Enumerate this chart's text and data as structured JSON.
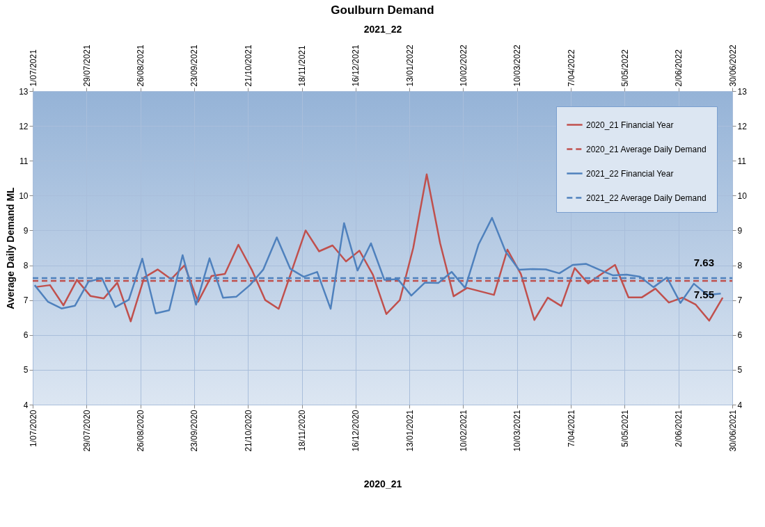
{
  "chart_data": {
    "type": "line",
    "title": "Goulburn Demand",
    "xlabel": "2020_21",
    "x2label": "2021_22",
    "ylabel": "Average Daily Demand ML",
    "x": [
      "2020-07-03",
      "2020-07-10",
      "2020-07-17",
      "2020-07-24",
      "2020-07-31",
      "2020-08-07",
      "2020-08-14",
      "2020-08-21",
      "2020-08-28",
      "2020-09-04",
      "2020-09-11",
      "2020-09-18",
      "2020-09-25",
      "2020-10-02",
      "2020-10-09",
      "2020-10-16",
      "2020-10-23",
      "2020-10-30",
      "2020-11-06",
      "2020-11-13",
      "2020-11-20",
      "2020-11-27",
      "2020-12-04",
      "2020-12-11",
      "2020-12-18",
      "2020-12-25",
      "2021-01-01",
      "2021-01-08",
      "2021-01-15",
      "2021-01-22",
      "2021-01-29",
      "2021-02-05",
      "2021-02-12",
      "2021-02-19",
      "2021-02-26",
      "2021-03-05",
      "2021-03-12",
      "2021-03-19",
      "2021-03-26",
      "2021-04-02",
      "2021-04-09",
      "2021-04-16",
      "2021-04-23",
      "2021-04-30",
      "2021-05-07",
      "2021-05-14",
      "2021-05-21",
      "2021-05-28",
      "2021-06-04",
      "2021-06-11",
      "2021-06-18",
      "2021-06-25"
    ],
    "series": [
      {
        "name": "2020_21 Financial Year",
        "color": "#c0504d",
        "values": [
          7.38,
          7.43,
          6.85,
          7.58,
          7.12,
          7.05,
          7.5,
          6.39,
          7.65,
          7.88,
          7.6,
          8.0,
          6.95,
          7.69,
          7.75,
          8.59,
          7.87,
          7.0,
          6.75,
          7.88,
          9.0,
          8.4,
          8.57,
          8.11,
          8.42,
          7.73,
          6.6,
          7.0,
          8.5,
          10.61,
          8.63,
          7.11,
          7.35,
          7.25,
          7.15,
          8.45,
          7.75,
          6.43,
          7.07,
          6.83,
          7.92,
          7.48,
          7.75,
          8.01,
          7.08,
          7.08,
          7.33,
          6.93,
          7.07,
          6.87,
          6.41,
          7.07
        ]
      },
      {
        "name": "2020_21 Average Daily Demand",
        "color": "#c0504d",
        "line_style": "dashed",
        "x": [
          "2020-07-01",
          "2021-06-30"
        ],
        "values": [
          7.55,
          7.55
        ]
      },
      {
        "name": "2021_22 Financial Year",
        "color": "#4f81bd",
        "axis": "x2",
        "x": [
          "2021-07-02",
          "2021-07-09",
          "2021-07-16",
          "2021-07-23",
          "2021-07-30",
          "2021-08-06",
          "2021-08-13",
          "2021-08-20",
          "2021-08-27",
          "2021-09-03",
          "2021-09-10",
          "2021-09-17",
          "2021-09-24",
          "2021-10-01",
          "2021-10-08",
          "2021-10-15",
          "2021-10-22",
          "2021-10-29",
          "2021-11-05",
          "2021-11-12",
          "2021-11-19",
          "2021-11-26",
          "2021-12-03",
          "2021-12-10",
          "2021-12-17",
          "2021-12-24",
          "2021-12-31",
          "2022-01-07",
          "2022-01-14",
          "2022-01-21",
          "2022-01-28",
          "2022-02-04",
          "2022-02-11",
          "2022-02-18",
          "2022-02-25",
          "2022-03-04",
          "2022-03-11",
          "2022-03-18",
          "2022-03-25",
          "2022-04-01",
          "2022-04-08",
          "2022-04-15",
          "2022-04-22",
          "2022-04-29",
          "2022-05-06",
          "2022-05-13",
          "2022-05-20",
          "2022-05-27",
          "2022-06-03",
          "2022-06-10",
          "2022-06-17",
          "2022-06-24"
        ],
        "values": [
          7.43,
          6.95,
          6.76,
          6.84,
          7.53,
          7.63,
          6.8,
          7.01,
          8.19,
          6.62,
          6.71,
          8.29,
          6.87,
          8.2,
          7.07,
          7.1,
          7.43,
          7.88,
          8.8,
          7.9,
          7.67,
          7.81,
          6.75,
          9.21,
          7.85,
          8.63,
          7.58,
          7.6,
          7.13,
          7.5,
          7.49,
          7.81,
          7.35,
          8.6,
          9.36,
          8.4,
          7.87,
          7.89,
          7.88,
          7.77,
          8.01,
          8.04,
          7.87,
          7.71,
          7.73,
          7.67,
          7.37,
          7.65,
          6.92,
          7.47,
          7.15,
          7.19
        ]
      },
      {
        "name": "2021_22 Average Daily Demand",
        "color": "#4f81bd",
        "line_style": "dashed",
        "axis": "x2",
        "x": [
          "2021-07-01",
          "2022-06-30"
        ],
        "values": [
          7.63,
          7.63
        ]
      }
    ],
    "annotations": [
      {
        "text": "7.63",
        "x": "2021-06-10",
        "y": 7.63
      },
      {
        "text": "7.55",
        "x": "2021-06-10",
        "y": 7.55
      }
    ],
    "xlim": [
      "2020-07-01",
      "2021-06-30"
    ],
    "xticks": [
      {
        "value": "2020-07-01",
        "label": "1/07/2020"
      },
      {
        "value": "2020-07-29",
        "label": "29/07/2020"
      },
      {
        "value": "2020-08-26",
        "label": "26/08/2020"
      },
      {
        "value": "2020-09-23",
        "label": "23/09/2020"
      },
      {
        "value": "2020-10-21",
        "label": "21/10/2020"
      },
      {
        "value": "2020-11-18",
        "label": "18/11/2020"
      },
      {
        "value": "2020-12-16",
        "label": "16/12/2020"
      },
      {
        "value": "2021-01-13",
        "label": "13/01/2021"
      },
      {
        "value": "2021-02-10",
        "label": "10/02/2021"
      },
      {
        "value": "2021-03-10",
        "label": "10/03/2021"
      },
      {
        "value": "2021-04-07",
        "label": "7/04/2021"
      },
      {
        "value": "2021-05-05",
        "label": "5/05/2021"
      },
      {
        "value": "2021-06-02",
        "label": "2/06/2021"
      },
      {
        "value": "2021-06-30",
        "label": "30/06/2021"
      }
    ],
    "x2lim": [
      "2021-07-01",
      "2022-06-30"
    ],
    "x2ticks": [
      {
        "value": "2021-07-01",
        "label": "1/07/2021"
      },
      {
        "value": "2021-07-29",
        "label": "29/07/2021"
      },
      {
        "value": "2021-08-26",
        "label": "26/08/2021"
      },
      {
        "value": "2021-09-23",
        "label": "23/09/2021"
      },
      {
        "value": "2021-10-21",
        "label": "21/10/2021"
      },
      {
        "value": "2021-11-18",
        "label": "18/11/2021"
      },
      {
        "value": "2021-12-16",
        "label": "16/12/2021"
      },
      {
        "value": "2022-01-13",
        "label": "13/01/2022"
      },
      {
        "value": "2022-02-10",
        "label": "10/02/2022"
      },
      {
        "value": "2022-03-10",
        "label": "10/03/2022"
      },
      {
        "value": "2022-04-07",
        "label": "7/04/2022"
      },
      {
        "value": "2022-05-05",
        "label": "5/05/2022"
      },
      {
        "value": "2022-06-02",
        "label": "2/06/2022"
      },
      {
        "value": "2022-06-30",
        "label": "30/06/2022"
      }
    ],
    "ylim": [
      4,
      13
    ],
    "yticks": [
      4,
      5,
      6,
      7,
      8,
      9,
      10,
      11,
      12,
      13
    ],
    "y2lim": [
      4,
      13
    ],
    "y2ticks": [
      4,
      5,
      6,
      7,
      8,
      9,
      10,
      11,
      12,
      13
    ],
    "grid": true,
    "legend": "top right",
    "marker": "none",
    "line_style": "solid"
  }
}
